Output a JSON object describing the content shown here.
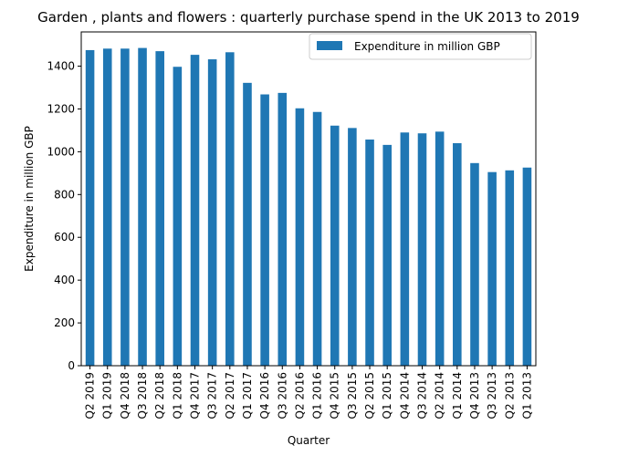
{
  "chart_data": {
    "type": "bar",
    "title": "Garden , plants and flowers : quarterly purchase spend in the UK 2013 to 2019",
    "xlabel": "Quarter",
    "ylabel": "Expenditure in million GBP",
    "categories": [
      "Q2 2019",
      "Q1 2019",
      "Q4 2018",
      "Q3 2018",
      "Q2 2018",
      "Q1 2018",
      "Q4 2017",
      "Q3 2017",
      "Q2 2017",
      "Q1 2017",
      "Q4 2016",
      "Q3 2016",
      "Q2 2016",
      "Q1 2016",
      "Q4 2015",
      "Q3 2015",
      "Q2 2015",
      "Q1 2015",
      "Q4 2014",
      "Q3 2014",
      "Q2 2014",
      "Q1 2014",
      "Q4 2013",
      "Q3 2013",
      "Q2 2013",
      "Q1 2013"
    ],
    "series": [
      {
        "name": "Expenditure in million GBP",
        "color": "#1f77b4",
        "values": [
          1475,
          1482,
          1482,
          1485,
          1470,
          1397,
          1453,
          1432,
          1465,
          1322,
          1268,
          1275,
          1203,
          1186,
          1122,
          1111,
          1057,
          1032,
          1090,
          1086,
          1094,
          1040,
          947,
          905,
          913,
          926
        ]
      }
    ],
    "ylim": [
      0,
      1560
    ],
    "yticks": [
      0,
      200,
      400,
      600,
      800,
      1000,
      1200,
      1400
    ],
    "legend_position": "top-right",
    "grid": false
  }
}
